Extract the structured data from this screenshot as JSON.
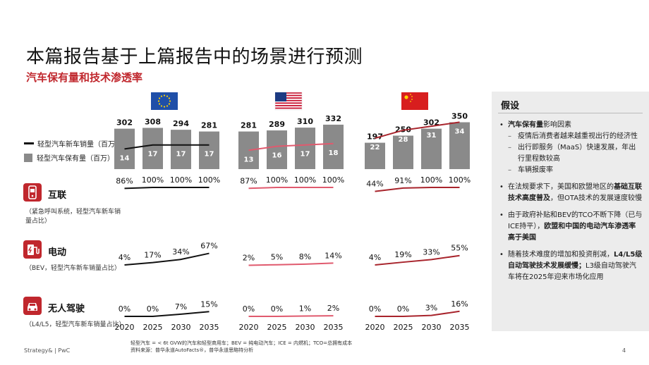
{
  "title": "本篇报告基于上篇报告中的场景进行预测",
  "subtitle": "汽车保有量和技术渗透率",
  "legend": {
    "sales_label": "轻型汽车新车销量（百万）",
    "fleet_label": "轻型汽车保有量（百万）"
  },
  "rows": {
    "connected": {
      "label": "互联",
      "note": "（紧急呼叫系统，轻型汽车新车销量占比）",
      "icon": "connected-car-icon"
    },
    "electric": {
      "label": "电动",
      "note": "（BEV，轻型汽车新车销量占比）",
      "icon": "ev-charger-icon"
    },
    "autonomous": {
      "label": "无人驾驶",
      "note": "（L4/L5，轻型汽车新车销量占比）",
      "icon": "autonomous-car-icon"
    }
  },
  "colors": {
    "accent": "#c0272d",
    "bar": "#8a8a8a",
    "eu_line": "#111111",
    "us_line": "#e05a6e",
    "cn_line": "#a8242c"
  },
  "chart_data": [
    {
      "type": "bar",
      "region": "EU",
      "flag": "eu-flag-icon",
      "categories": [
        "2020",
        "2025",
        "2030",
        "2035"
      ],
      "series": [
        {
          "name": "轻型汽车保有量（百万）",
          "values": [
            302,
            308,
            294,
            281
          ]
        },
        {
          "name": "轻型汽车新车销量（百万）",
          "values": [
            14,
            17,
            17,
            17
          ]
        }
      ],
      "connected": [
        86,
        100,
        100,
        100
      ],
      "electric": [
        4,
        17,
        34,
        67
      ],
      "autonomous": [
        0,
        0,
        7,
        15
      ]
    },
    {
      "type": "bar",
      "region": "US",
      "flag": "us-flag-icon",
      "categories": [
        "2020",
        "2025",
        "2030",
        "2035"
      ],
      "series": [
        {
          "name": "轻型汽车保有量（百万）",
          "values": [
            281,
            289,
            310,
            332
          ]
        },
        {
          "name": "轻型汽车新车销量（百万）",
          "values": [
            13,
            16,
            17,
            18
          ]
        }
      ],
      "connected": [
        87,
        100,
        100,
        100
      ],
      "electric": [
        2,
        5,
        8,
        14
      ],
      "autonomous": [
        0,
        0,
        1,
        2
      ]
    },
    {
      "type": "bar",
      "region": "CN",
      "flag": "cn-flag-icon",
      "categories": [
        "2020",
        "2025",
        "2030",
        "2035"
      ],
      "series": [
        {
          "name": "轻型汽车保有量（百万）",
          "values": [
            197,
            250,
            302,
            350
          ]
        },
        {
          "name": "轻型汽车新车销量（百万）",
          "values": [
            22,
            28,
            31,
            34
          ]
        }
      ],
      "connected": [
        44,
        91,
        100,
        100
      ],
      "electric": [
        4,
        19,
        33,
        55
      ],
      "autonomous": [
        0,
        0,
        3,
        16
      ]
    }
  ],
  "sidebar": {
    "title": "假设",
    "b1_bold": "汽车保有量",
    "b1_rest": "影响因素",
    "b1_sub1": "疫情后消费者越来越重视出行的经济性",
    "b1_sub2": "出行即服务（MaaS）快速发展，年出行里程数较高",
    "b1_sub3": "车辆报废率",
    "b2_pre": "在法规要求下，美国和欧盟地区的",
    "b2_bold": "基础互联技术高度普及",
    "b2_post": "，但OTA技术的发展速度较慢",
    "b3_pre": "由于政府补贴和BEV的TCO不断下降（已与ICE持平），",
    "b3_bold": "欧盟和中国的电动汽车渗透率高于美国",
    "b4_pre": "随着技术难度的增加和投资削减，",
    "b4_bold": "L4/L5级自动驾驶技术发展缓慢；",
    "b4_post": "L3级自动驾驶汽车将在2025年迎来市场化应用"
  },
  "footer": {
    "brand": "Strategy& | PwC",
    "note1": "轻型汽车 = < 6t GVW的汽车和轻型商用车；BEV = 纯电动汽车；ICE = 内燃机；TCO=总拥有成本",
    "note2": "资料来源：普华永道AutoFacts®，普华永道思略特分析",
    "page": "4"
  }
}
